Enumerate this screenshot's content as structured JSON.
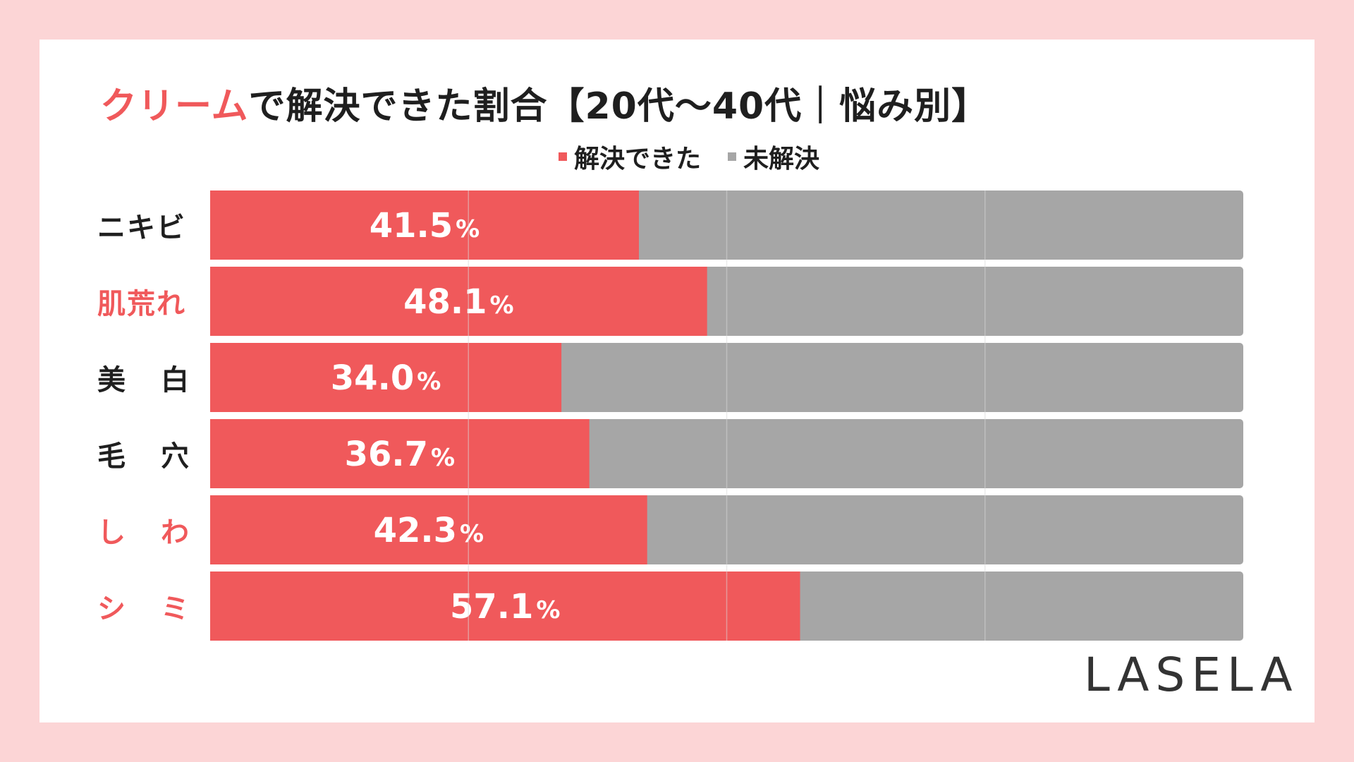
{
  "title": {
    "accent": "クリーム",
    "rest": "で解決できた割合【20代〜40代｜悩み別】"
  },
  "legend": [
    {
      "label": "解決できた",
      "color": "#f0595b"
    },
    {
      "label": "未解決",
      "color": "#a6a6a6"
    }
  ],
  "chart_data": {
    "type": "bar",
    "orientation": "horizontal",
    "stacked": true,
    "percent_stacked": true,
    "categories": [
      "ニキビ",
      "肌荒れ",
      "美　白",
      "毛　穴",
      "し　わ",
      "シ　ミ"
    ],
    "highlighted_categories": [
      "肌荒れ",
      "し　わ",
      "シ　ミ"
    ],
    "series": [
      {
        "name": "解決できた",
        "values": [
          41.5,
          48.1,
          34.0,
          36.7,
          42.3,
          57.1
        ],
        "color": "#f0595b"
      },
      {
        "name": "未解決",
        "values": [
          58.5,
          51.9,
          66.0,
          63.3,
          57.7,
          42.9
        ],
        "color": "#a6a6a6"
      }
    ],
    "data_labels": [
      "41.5",
      "48.1",
      "34.0",
      "36.7",
      "42.3",
      "57.1"
    ],
    "unit": "%",
    "xlim": [
      0,
      100
    ],
    "gridlines": [
      25,
      50,
      75
    ],
    "title": "クリームで解決できた割合【20代〜40代｜悩み別】",
    "legend_position": "top"
  },
  "logo": "LASELA"
}
